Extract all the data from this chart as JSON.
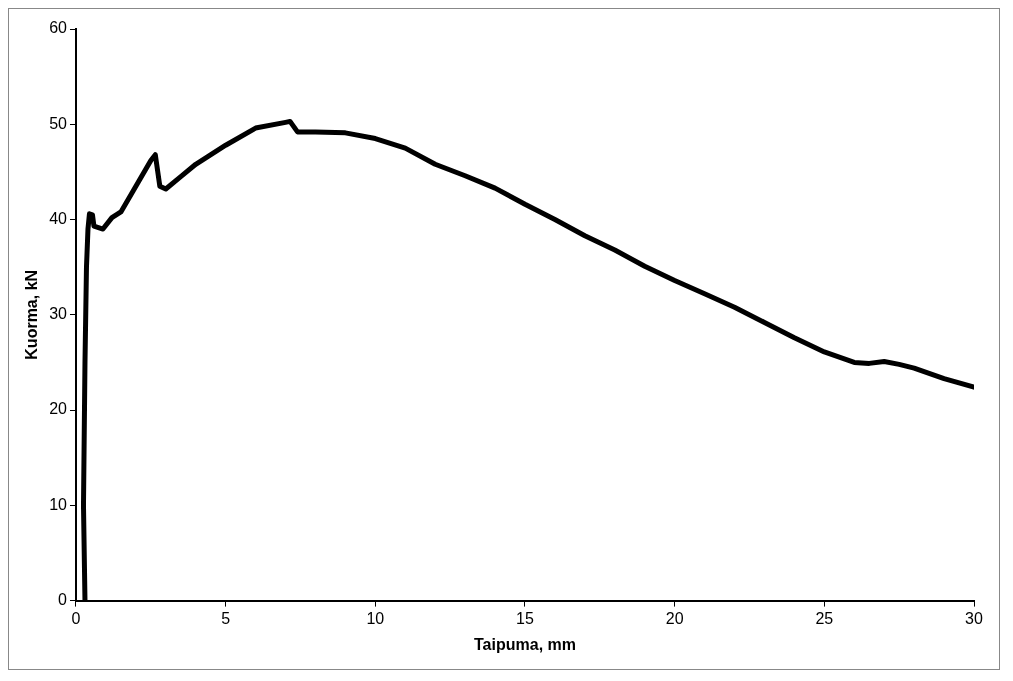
{
  "chart_data": {
    "type": "line",
    "xlabel": "Taipuma, mm",
    "ylabel": "Kuorma, kN",
    "xlim": [
      0,
      30
    ],
    "ylim": [
      0,
      60
    ],
    "xticks": [
      0,
      5,
      10,
      15,
      20,
      25,
      30
    ],
    "yticks": [
      0,
      10,
      20,
      30,
      40,
      50,
      60
    ],
    "grid": false,
    "legend": false,
    "marker": "none",
    "line_style": "solid",
    "series": [
      {
        "color": "#000000",
        "x": [
          0.3,
          0.25,
          0.3,
          0.35,
          0.4,
          0.45,
          0.55,
          0.6,
          0.9,
          1.2,
          1.5,
          2.0,
          2.5,
          2.65,
          2.8,
          3.0,
          3.5,
          4,
          5,
          6,
          7,
          7.15,
          7.4,
          8,
          9,
          10,
          11,
          12,
          13,
          14,
          15,
          16,
          17,
          18,
          19,
          20,
          21,
          22,
          23,
          24,
          25,
          26,
          26.5,
          27,
          27.5,
          28,
          29,
          30
        ],
        "values": [
          0,
          10,
          25,
          35,
          39,
          40.6,
          40.5,
          39.3,
          39,
          40.2,
          40.8,
          43.5,
          46.2,
          46.8,
          43.5,
          43.2,
          44.5,
          45.8,
          47.8,
          49.6,
          50.2,
          50.3,
          49.2,
          49.2,
          49.1,
          48.5,
          47.5,
          45.8,
          44.6,
          43.3,
          41.6,
          40,
          38.3,
          36.8,
          35.1,
          33.6,
          32.2,
          30.8,
          29.2,
          27.6,
          26.1,
          25,
          24.9,
          25.1,
          24.8,
          24.4,
          23.3,
          22.4
        ]
      }
    ]
  }
}
